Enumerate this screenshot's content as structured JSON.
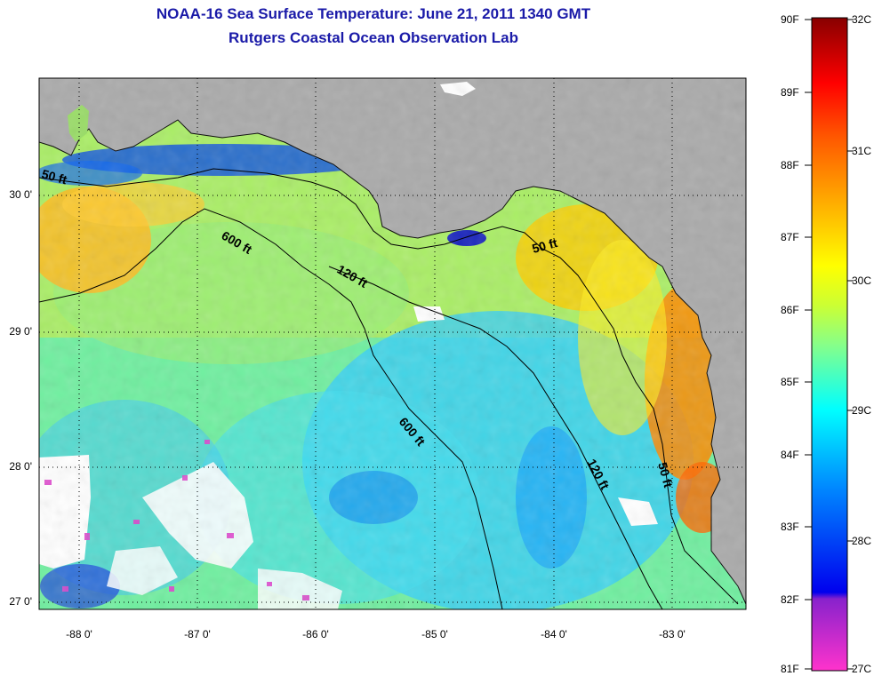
{
  "header": {
    "title_line1": "NOAA-16 Sea Surface Temperature:  June 21, 2011 1340 GMT",
    "title_line2": "Rutgers Coastal Ocean Observation Lab"
  },
  "map": {
    "latitude_labels": [
      "30 0'",
      "29 0'",
      "28 0'",
      "27 0'"
    ],
    "longitude_labels": [
      "-88 0'",
      "-87 0'",
      "-86 0'",
      "-85 0'",
      "-84 0'",
      "-83 0'"
    ],
    "contour_labels": [
      "50 ft",
      "600 ft",
      "120 ft",
      "50 ft",
      "600 ft",
      "120 ft",
      "50 ft"
    ],
    "land_color": "#aaaaaa",
    "cloud_color": "#ffffff"
  },
  "colorbar": {
    "fahrenheit_labels": [
      "90F",
      "89F",
      "88F",
      "87F",
      "86F",
      "85F",
      "84F",
      "83F",
      "82F",
      "81F"
    ],
    "celsius_labels": [
      "32C",
      "31C",
      "30C",
      "29C",
      "28C",
      "27C"
    ],
    "colors": [
      "#ff33cc",
      "#9933cc",
      "#0000ff",
      "#00aaff",
      "#00ffff",
      "#66ffaa",
      "#ccff33",
      "#ffff00",
      "#ffcc00",
      "#ff8800",
      "#ff3300",
      "#990000"
    ]
  }
}
